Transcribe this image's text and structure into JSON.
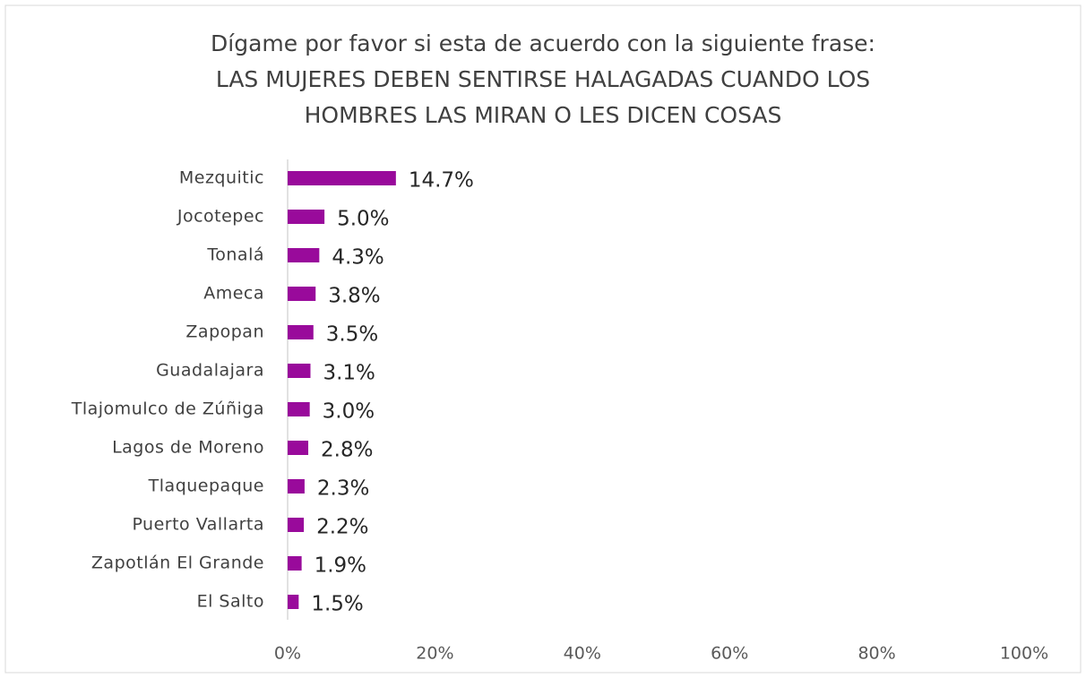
{
  "chart_data": {
    "type": "bar",
    "orientation": "horizontal",
    "title": [
      "Dígame por favor si esta de acuerdo con la siguiente frase:",
      "LAS MUJERES DEBEN SENTIRSE HALAGADAS CUANDO LOS",
      "HOMBRES LAS MIRAN O LES DICEN COSAS"
    ],
    "categories": [
      "Mezquitic",
      "Jocotepec",
      "Tonalá",
      "Ameca",
      "Zapopan",
      "Guadalajara",
      "Tlajomulco de Zúñiga",
      "Lagos de Moreno",
      "Tlaquepaque",
      "Puerto Vallarta",
      "Zapotlán El Grande",
      "El Salto"
    ],
    "values": [
      14.7,
      5.0,
      4.3,
      3.8,
      3.5,
      3.1,
      3.0,
      2.8,
      2.3,
      2.2,
      1.9,
      1.5
    ],
    "value_labels": [
      "14.7%",
      "5.0%",
      "4.3%",
      "3.8%",
      "3.5%",
      "3.1%",
      "3.0%",
      "2.8%",
      "2.3%",
      "2.2%",
      "1.9%",
      "1.5%"
    ],
    "color": "#990a9b",
    "xlim": [
      0,
      100
    ],
    "xticks": [
      {
        "value": 0,
        "label": "0%"
      },
      {
        "value": 20,
        "label": "20%"
      },
      {
        "value": 40,
        "label": "40%"
      },
      {
        "value": 60,
        "label": "60%"
      },
      {
        "value": 80,
        "label": "80%"
      },
      {
        "value": 100,
        "label": "100%"
      }
    ],
    "grid": false
  }
}
